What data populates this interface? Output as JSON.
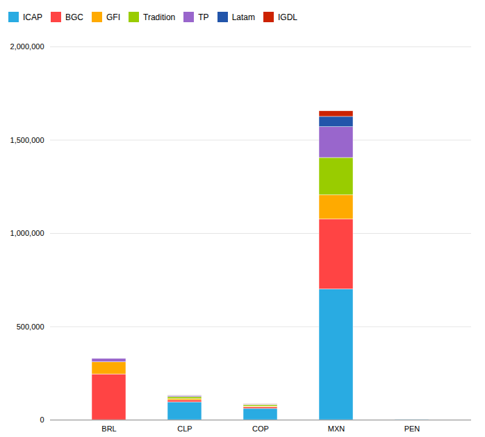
{
  "chart_data": {
    "type": "bar",
    "stacked": true,
    "categories": [
      "BRL",
      "CLP",
      "COP",
      "MXN",
      "PEN"
    ],
    "series": [
      {
        "name": "ICAP",
        "color": "#29ABE2",
        "values": [
          0,
          95000,
          60000,
          700000,
          2000
        ]
      },
      {
        "name": "BGC",
        "color": "#FF4444",
        "values": [
          245000,
          10000,
          8000,
          375000,
          0
        ]
      },
      {
        "name": "GFI",
        "color": "#FFAA00",
        "values": [
          65000,
          8000,
          5000,
          130000,
          0
        ]
      },
      {
        "name": "Tradition",
        "color": "#99CC00",
        "values": [
          0,
          10000,
          8000,
          200000,
          0
        ]
      },
      {
        "name": "TP",
        "color": "#9966CC",
        "values": [
          18000,
          5000,
          3000,
          165000,
          0
        ]
      },
      {
        "name": "Latam",
        "color": "#2255AA",
        "values": [
          0,
          2000,
          1000,
          55000,
          0
        ]
      },
      {
        "name": "IGDL",
        "color": "#CC2200",
        "values": [
          0,
          1500,
          800,
          30000,
          0
        ]
      }
    ],
    "ylim": [
      0,
      2000000
    ],
    "yticks": [
      0,
      {
        "value": 500000,
        "label": "500,000"
      },
      {
        "value": 1000000,
        "label": "1,000,000"
      },
      {
        "value": 1500000,
        "label": "1,500,000"
      },
      {
        "value": 2000000,
        "label": "2,000,000"
      }
    ],
    "grid": true,
    "legend": "upper left"
  }
}
